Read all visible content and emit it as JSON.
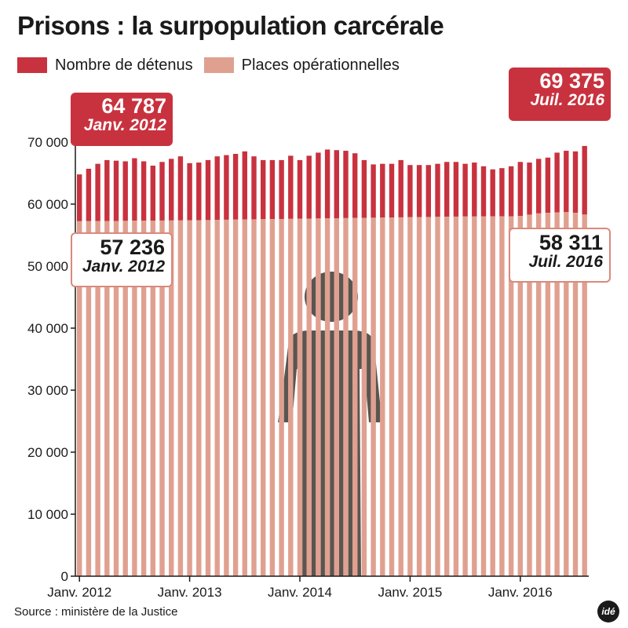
{
  "chart_data": {
    "type": "bar",
    "title": "Prisons : la surpopulation carcérale",
    "legend": [
      {
        "name": "Nombre de détenus",
        "color": "#c8323e"
      },
      {
        "name": "Places opérationnelles",
        "color": "#e0a090"
      }
    ],
    "series": [
      {
        "name": "Nombre de détenus",
        "color": "#c8323e",
        "values": [
          64787,
          65700,
          66500,
          67100,
          67000,
          66900,
          67400,
          66900,
          66200,
          66800,
          67300,
          67700,
          66600,
          66700,
          67100,
          67700,
          67900,
          68100,
          68500,
          67700,
          67100,
          67100,
          67100,
          67800,
          67100,
          67800,
          68300,
          68800,
          68700,
          68600,
          68200,
          67100,
          66400,
          66500,
          66500,
          67100,
          66300,
          66300,
          66300,
          66500,
          66800,
          66800,
          66500,
          66700,
          66100,
          65600,
          65800,
          66100,
          66800,
          66700,
          67300,
          67500,
          68300,
          68600,
          68500,
          69375
        ]
      },
      {
        "name": "Places opérationnelles",
        "color": "#e0a090",
        "values": [
          57236,
          57250,
          57260,
          57270,
          57280,
          57300,
          57320,
          57330,
          57340,
          57350,
          57360,
          57370,
          57380,
          57400,
          57420,
          57450,
          57480,
          57500,
          57520,
          57540,
          57560,
          57580,
          57600,
          57620,
          57640,
          57660,
          57680,
          57700,
          57720,
          57740,
          57760,
          57780,
          57800,
          57820,
          57840,
          57860,
          57880,
          57900,
          57920,
          57940,
          57960,
          57980,
          58000,
          58000,
          58010,
          58020,
          58030,
          58040,
          58100,
          58300,
          58500,
          58600,
          58650,
          58700,
          58600,
          58311
        ]
      }
    ],
    "x_ticks": [
      "Janv. 2012",
      "Janv. 2013",
      "Janv. 2014",
      "Janv. 2015",
      "Janv. 2016"
    ],
    "y_ticks": [
      "0",
      "10 000",
      "20 000",
      "30 000",
      "40 000",
      "50 000",
      "60 000",
      "70 000"
    ],
    "ylim": [
      0,
      70000
    ],
    "grid": false,
    "annotations": [
      {
        "value": "64 787",
        "label": "Janv. 2012",
        "series": "Nombre de détenus"
      },
      {
        "value": "57 236",
        "label": "Janv. 2012",
        "series": "Places opérationnelles"
      },
      {
        "value": "69 375",
        "label": "Juil. 2016",
        "series": "Nombre de détenus"
      },
      {
        "value": "58 311",
        "label": "Juil. 2016",
        "series": "Places opérationnelles"
      }
    ]
  },
  "source": "Source : ministère de la Justice",
  "logo_text": "idé"
}
